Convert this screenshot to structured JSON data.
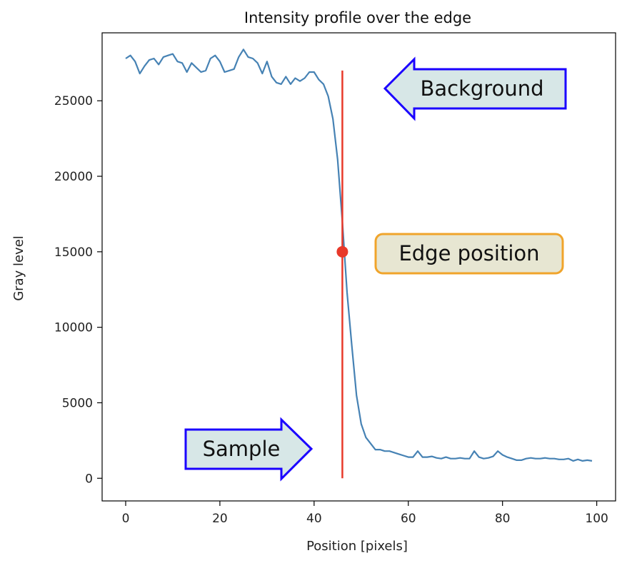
{
  "chart_data": {
    "type": "line",
    "title": "Intensity profile over the edge",
    "xlabel": "Position [pixels]",
    "ylabel": "Gray level",
    "xlim": [
      -5,
      104
    ],
    "ylim": [
      -1500,
      29500
    ],
    "xticks": [
      0,
      20,
      40,
      60,
      80,
      100
    ],
    "yticks": [
      0,
      5000,
      10000,
      15000,
      20000,
      25000
    ],
    "grid": false,
    "series": [
      {
        "color": "#4682b4",
        "x": [
          0,
          1,
          2,
          3,
          4,
          5,
          6,
          7,
          8,
          9,
          10,
          11,
          12,
          13,
          14,
          15,
          16,
          17,
          18,
          19,
          20,
          21,
          22,
          23,
          24,
          25,
          26,
          27,
          28,
          29,
          30,
          31,
          32,
          33,
          34,
          35,
          36,
          37,
          38,
          39,
          40,
          41,
          42,
          43,
          44,
          45,
          46,
          47,
          48,
          49,
          50,
          51,
          52,
          53,
          54,
          55,
          56,
          57,
          58,
          59,
          60,
          61,
          62,
          63,
          64,
          65,
          66,
          67,
          68,
          69,
          70,
          71,
          72,
          73,
          74,
          75,
          76,
          77,
          78,
          79,
          80,
          81,
          82,
          83,
          84,
          85,
          86,
          87,
          88,
          89,
          90,
          91,
          92,
          93,
          94,
          95,
          96,
          97,
          98,
          99
        ],
        "values": [
          27800,
          28000,
          27600,
          26800,
          27300,
          27700,
          27800,
          27400,
          27900,
          28000,
          28100,
          27600,
          27500,
          26900,
          27500,
          27200,
          26900,
          27000,
          27800,
          28000,
          27600,
          26900,
          27000,
          27100,
          27900,
          28400,
          27900,
          27800,
          27500,
          26800,
          27600,
          26600,
          26200,
          26100,
          26600,
          26100,
          26500,
          26300,
          26500,
          26900,
          26900,
          26400,
          26100,
          25300,
          23800,
          21100,
          17000,
          12300,
          8800,
          5500,
          3600,
          2700,
          2300,
          1900,
          1900,
          1800,
          1800,
          1700,
          1600,
          1500,
          1400,
          1400,
          1800,
          1400,
          1400,
          1450,
          1350,
          1300,
          1400,
          1300,
          1300,
          1350,
          1300,
          1300,
          1800,
          1400,
          1300,
          1350,
          1450,
          1800,
          1550,
          1400,
          1300,
          1200,
          1200,
          1300,
          1350,
          1300,
          1300,
          1350,
          1300,
          1300,
          1250,
          1250,
          1300,
          1150,
          1250,
          1150,
          1200,
          1150
        ]
      }
    ],
    "vline": {
      "x": 46,
      "y0": 0,
      "y1": 27000,
      "color": "#e8392a"
    },
    "marker": {
      "x": 46,
      "y": 15000,
      "color": "#e8392a"
    },
    "annotations": [
      {
        "text": "Background",
        "shape": "left-arrow",
        "fill": "#d7e7e7",
        "stroke": "#1a00ff"
      },
      {
        "text": "Edge position",
        "shape": "round-box",
        "fill": "#e7e6d2",
        "stroke": "#f0a42b"
      },
      {
        "text": "Sample",
        "shape": "right-arrow",
        "fill": "#d7e7e7",
        "stroke": "#1a00ff"
      }
    ]
  }
}
